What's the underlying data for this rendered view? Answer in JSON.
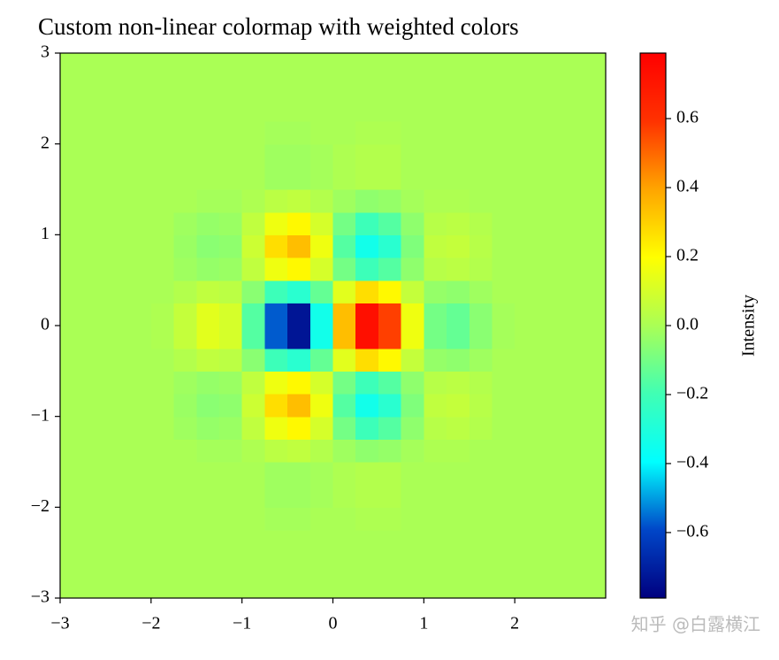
{
  "chart_data": {
    "type": "heatmap",
    "title": "Custom non-linear colormap with weighted colors",
    "colorbar_label": "Intensity",
    "watermark": "知乎 @白露横江",
    "xlim": [
      -3,
      3
    ],
    "ylim": [
      -3,
      3
    ],
    "xticks": [
      {
        "value": -3,
        "label": "−3"
      },
      {
        "value": -2,
        "label": "−2"
      },
      {
        "value": -1,
        "label": "−1"
      },
      0,
      1,
      2
    ],
    "yticks": [
      {
        "value": -3,
        "label": "−3"
      },
      {
        "value": -2,
        "label": "−2"
      },
      {
        "value": -1,
        "label": "−1"
      },
      0,
      1,
      2,
      3
    ],
    "clim": [
      -0.79,
      0.79
    ],
    "cticks": [
      {
        "value": -0.6,
        "label": "−0.6"
      },
      {
        "value": -0.4,
        "label": "−0.4"
      },
      {
        "value": -0.2,
        "label": "−0.2"
      },
      {
        "value": 0,
        "label": "0.0"
      },
      0.2,
      0.4,
      0.6
    ],
    "colormap": [
      "#00007f",
      "#0046c8",
      "#00ffff",
      "#40ffb4",
      "#aaff55",
      "#ffff00",
      "#ffa500",
      "#ff3200",
      "#ff0000"
    ],
    "z": [
      [
        0,
        0,
        0,
        0,
        0,
        0,
        0,
        0,
        0,
        0,
        0,
        0,
        0,
        0,
        0,
        0,
        0,
        0,
        0,
        0,
        0,
        0,
        0,
        0
      ],
      [
        0,
        0,
        0,
        0,
        0,
        0,
        0,
        0,
        0,
        0,
        0,
        0,
        0,
        0,
        0,
        0,
        0,
        0,
        0,
        0,
        0,
        0,
        0,
        0
      ],
      [
        0,
        0,
        0,
        0,
        0,
        0,
        0,
        0,
        0,
        0,
        0,
        0,
        0,
        0,
        0,
        0,
        0,
        0,
        0,
        0,
        0,
        0,
        0,
        0
      ],
      [
        0,
        0,
        0,
        0,
        0,
        0,
        0,
        0,
        0,
        -0.01,
        -0.01,
        0,
        0,
        0.01,
        0.01,
        0,
        0,
        0,
        0,
        0,
        0,
        0,
        0,
        0
      ],
      [
        0,
        0,
        0,
        0,
        0,
        0,
        0,
        0,
        0,
        -0.02,
        -0.02,
        -0.01,
        0.01,
        0.02,
        0.02,
        0,
        0,
        0,
        0,
        0,
        0,
        0,
        0,
        0
      ],
      [
        0,
        0,
        0,
        0,
        0,
        0,
        0,
        0,
        0,
        -0.02,
        -0.02,
        -0.01,
        0.01,
        0.02,
        0.02,
        0,
        0,
        0,
        0,
        0,
        0,
        0,
        0,
        0
      ],
      [
        0,
        0,
        0,
        0,
        0,
        0,
        -0.01,
        -0.01,
        0.01,
        0.04,
        0.05,
        0.02,
        -0.02,
        -0.05,
        -0.04,
        -0.01,
        0.01,
        0.01,
        0,
        0,
        0,
        0,
        0,
        0
      ],
      [
        0,
        0,
        0,
        0,
        0,
        -0.02,
        -0.04,
        -0.03,
        0.05,
        0.16,
        0.21,
        0.1,
        -0.1,
        -0.21,
        -0.16,
        -0.05,
        0.03,
        0.04,
        0.02,
        0,
        0,
        0,
        0,
        0
      ],
      [
        0,
        0,
        0,
        0,
        0,
        -0.03,
        -0.06,
        -0.05,
        0.08,
        0.27,
        0.34,
        0.16,
        -0.16,
        -0.34,
        -0.27,
        -0.08,
        0.05,
        0.06,
        0.03,
        0,
        0,
        0,
        0,
        0
      ],
      [
        0,
        0,
        0,
        0,
        0,
        -0.02,
        -0.04,
        -0.03,
        0.05,
        0.16,
        0.21,
        0.1,
        -0.1,
        -0.21,
        -0.16,
        -0.05,
        0.03,
        0.04,
        0.02,
        0,
        0,
        0,
        0,
        0
      ],
      [
        0,
        0,
        0,
        0,
        0,
        0.02,
        0.05,
        0.04,
        -0.06,
        -0.21,
        -0.27,
        -0.13,
        0.13,
        0.27,
        0.21,
        0.06,
        -0.04,
        -0.05,
        -0.02,
        0,
        0,
        0,
        0,
        0
      ],
      [
        0,
        0,
        0,
        0,
        0.01,
        0.06,
        0.13,
        0.1,
        -0.16,
        -0.57,
        -0.73,
        -0.34,
        0.34,
        0.73,
        0.57,
        0.16,
        -0.1,
        -0.13,
        -0.06,
        -0.01,
        0,
        0,
        0,
        0
      ],
      [
        0,
        0,
        0,
        0,
        0.01,
        0.06,
        0.13,
        0.1,
        -0.16,
        -0.57,
        -0.73,
        -0.34,
        0.34,
        0.73,
        0.57,
        0.16,
        -0.1,
        -0.13,
        -0.06,
        -0.01,
        0,
        0,
        0,
        0
      ],
      [
        0,
        0,
        0,
        0,
        0,
        0.02,
        0.05,
        0.04,
        -0.06,
        -0.21,
        -0.27,
        -0.13,
        0.13,
        0.27,
        0.21,
        0.06,
        -0.04,
        -0.05,
        -0.02,
        0,
        0,
        0,
        0,
        0
      ],
      [
        0,
        0,
        0,
        0,
        0,
        -0.02,
        -0.04,
        -0.03,
        0.05,
        0.16,
        0.21,
        0.1,
        -0.1,
        -0.21,
        -0.16,
        -0.05,
        0.03,
        0.04,
        0.02,
        0,
        0,
        0,
        0,
        0
      ],
      [
        0,
        0,
        0,
        0,
        0,
        -0.03,
        -0.06,
        -0.05,
        0.08,
        0.27,
        0.34,
        0.16,
        -0.16,
        -0.34,
        -0.27,
        -0.08,
        0.05,
        0.06,
        0.03,
        0,
        0,
        0,
        0,
        0
      ],
      [
        0,
        0,
        0,
        0,
        0,
        -0.02,
        -0.04,
        -0.03,
        0.05,
        0.16,
        0.21,
        0.1,
        -0.1,
        -0.21,
        -0.16,
        -0.05,
        0.03,
        0.04,
        0.02,
        0,
        0,
        0,
        0,
        0
      ],
      [
        0,
        0,
        0,
        0,
        0,
        0,
        -0.01,
        -0.01,
        0.01,
        0.04,
        0.05,
        0.02,
        -0.02,
        -0.05,
        -0.04,
        -0.01,
        0.01,
        0.01,
        0,
        0,
        0,
        0,
        0,
        0
      ],
      [
        0,
        0,
        0,
        0,
        0,
        0,
        0,
        0,
        0,
        -0.02,
        -0.02,
        -0.01,
        0.01,
        0.02,
        0.02,
        0,
        0,
        0,
        0,
        0,
        0,
        0,
        0,
        0
      ],
      [
        0,
        0,
        0,
        0,
        0,
        0,
        0,
        0,
        0,
        -0.02,
        -0.02,
        -0.01,
        0.01,
        0.02,
        0.02,
        0,
        0,
        0,
        0,
        0,
        0,
        0,
        0,
        0
      ],
      [
        0,
        0,
        0,
        0,
        0,
        0,
        0,
        0,
        0,
        -0.01,
        -0.01,
        0,
        0,
        0.01,
        0.01,
        0,
        0,
        0,
        0,
        0,
        0,
        0,
        0,
        0
      ],
      [
        0,
        0,
        0,
        0,
        0,
        0,
        0,
        0,
        0,
        0,
        0,
        0,
        0,
        0,
        0,
        0,
        0,
        0,
        0,
        0,
        0,
        0,
        0,
        0
      ],
      [
        0,
        0,
        0,
        0,
        0,
        0,
        0,
        0,
        0,
        0,
        0,
        0,
        0,
        0,
        0,
        0,
        0,
        0,
        0,
        0,
        0,
        0,
        0,
        0
      ],
      [
        0,
        0,
        0,
        0,
        0,
        0,
        0,
        0,
        0,
        0,
        0,
        0,
        0,
        0,
        0,
        0,
        0,
        0,
        0,
        0,
        0,
        0,
        0,
        0
      ]
    ]
  }
}
